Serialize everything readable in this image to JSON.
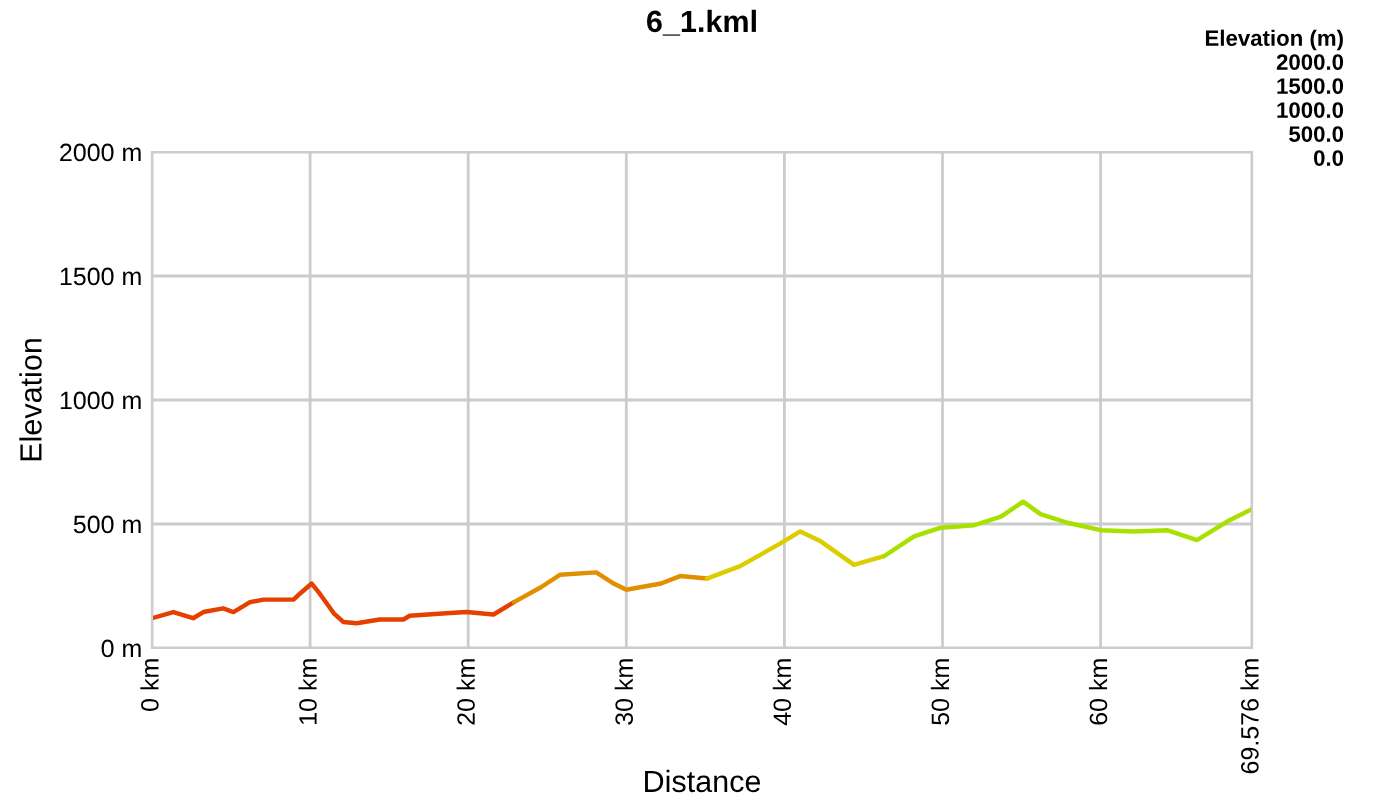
{
  "chart_data": {
    "type": "line",
    "title": "6_1.kml",
    "xlabel": "Distance",
    "ylabel": "Elevation",
    "annotations": [
      "Elevation (m)",
      "2000.0",
      "1500.0",
      "1000.0",
      "500.0",
      "0.0"
    ],
    "series": [
      {
        "color": "#e64000",
        "x": [
          0,
          1.35,
          2.6,
          3.25,
          4.5,
          5.15,
          6.2,
          7.05,
          8.95,
          9.37,
          10.1,
          10.6,
          11.5,
          12.1,
          12.95,
          14.4,
          15.9,
          16.3,
          18.6,
          19.9,
          21.6,
          22.9
        ],
        "values": [
          120,
          145,
          120,
          145,
          160,
          145,
          185,
          195,
          195,
          220,
          260,
          220,
          140,
          105,
          100,
          115,
          115,
          130,
          140,
          145,
          135,
          185
        ]
      },
      {
        "color": "#e09000",
        "x": [
          22.9,
          24.6,
          25.8,
          28.1,
          29.2,
          30.0,
          32.2,
          33.4,
          35.1
        ],
        "values": [
          185,
          245,
          295,
          305,
          260,
          235,
          260,
          290,
          280
        ]
      },
      {
        "color": "#dccc00",
        "x": [
          35.1,
          37.2,
          39.7,
          41.0,
          42.3,
          44.4,
          46.3
        ],
        "values": [
          280,
          330,
          420,
          470,
          430,
          335,
          370
        ]
      },
      {
        "color": "#a8e000",
        "x": [
          46.3,
          48.2,
          49.9,
          52.0,
          53.7,
          55.1,
          56.2,
          57.9,
          60.0,
          62.1,
          64.2,
          66.1,
          68.0,
          69.576
        ],
        "values": [
          370,
          450,
          485,
          495,
          530,
          590,
          540,
          505,
          475,
          470,
          475,
          435,
          510,
          560
        ]
      }
    ],
    "xlim": [
      0,
      69.576
    ],
    "xticks": [
      {
        "value": 0,
        "label": "0 km"
      },
      {
        "value": 10,
        "label": "10 km"
      },
      {
        "value": 20,
        "label": "20 km"
      },
      {
        "value": 30,
        "label": "30 km"
      },
      {
        "value": 40,
        "label": "40 km"
      },
      {
        "value": 50,
        "label": "50 km"
      },
      {
        "value": 60,
        "label": "60 km"
      },
      {
        "value": 69.576,
        "label": "69.576 km"
      }
    ],
    "ylim": [
      0,
      2000
    ],
    "yticks": [
      {
        "value": 0,
        "label": "0 m"
      },
      {
        "value": 500,
        "label": "500 m"
      },
      {
        "value": 1000,
        "label": "1000 m"
      },
      {
        "value": 1500,
        "label": "1500 m"
      },
      {
        "value": 2000,
        "label": "2000 m"
      }
    ],
    "grid": true
  }
}
